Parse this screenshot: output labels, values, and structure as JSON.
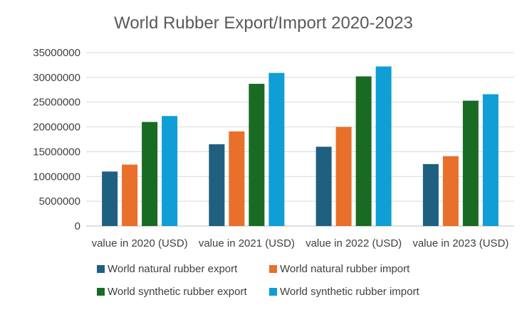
{
  "chart_data": {
    "type": "bar",
    "title": "World Rubber Export/Import 2020-2023",
    "xlabel": "",
    "ylabel": "",
    "ylim": [
      0,
      35000000
    ],
    "yticks": [
      "0",
      "5000000",
      "10000000",
      "15000000",
      "20000000",
      "25000000",
      "30000000",
      "35000000"
    ],
    "categories": [
      "value in 2020 (USD)",
      "value in 2021 (USD)",
      "value in 2022 (USD)",
      "value in 2023 (USD)"
    ],
    "series": [
      {
        "name": "World natural rubber export",
        "color": "#1f5f7f",
        "values": [
          11000000,
          16500000,
          16000000,
          12500000
        ]
      },
      {
        "name": "World natural rubber import",
        "color": "#e8702a",
        "values": [
          12400000,
          19100000,
          20000000,
          14100000
        ]
      },
      {
        "name": "World synthetic rubber export",
        "color": "#196b24",
        "values": [
          21000000,
          28700000,
          30200000,
          25300000
        ]
      },
      {
        "name": "World synthetic rubber import",
        "color": "#0f9ed5",
        "values": [
          22200000,
          30900000,
          32200000,
          26600000
        ]
      }
    ],
    "grid": true,
    "legend_position": "bottom"
  }
}
